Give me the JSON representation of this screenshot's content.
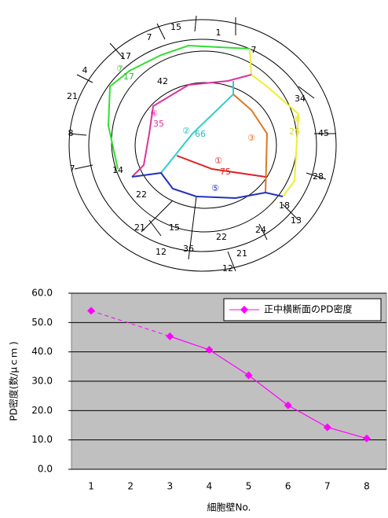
{
  "diagram": {
    "labels": [
      "15",
      "1",
      "7",
      "17",
      "7",
      "4",
      "21",
      "42",
      "34",
      "8",
      "45",
      "7",
      "14",
      "28",
      "22",
      "18",
      "13",
      "21",
      "15",
      "24",
      "22",
      "36",
      "21",
      "12",
      "12",
      "⑦",
      "17",
      "④",
      "35",
      "②",
      "66",
      "③",
      "⑥",
      "26",
      "①",
      "75",
      "⑤"
    ]
  },
  "chart_data": {
    "type": "line",
    "categories": [
      "1",
      "2",
      "3",
      "4",
      "5",
      "6",
      "7",
      "8"
    ],
    "series": [
      {
        "name": "正中横断面のPD密度",
        "color": "#ff00ff",
        "values": [
          54.0,
          null,
          45.3,
          40.7,
          32.0,
          21.8,
          14.3,
          10.5
        ]
      }
    ],
    "ylim": [
      0,
      60
    ],
    "yticks": [
      {
        "value": 0,
        "label": "0.0"
      },
      {
        "value": 10,
        "label": "10.0"
      },
      {
        "value": 20,
        "label": "20.0"
      },
      {
        "value": 30,
        "label": "30.0"
      },
      {
        "value": 40,
        "label": "40.0"
      },
      {
        "value": 50,
        "label": "50.0"
      },
      {
        "value": 60,
        "label": "60.0"
      }
    ],
    "y_label": "PD密度(数/μｃｍ )",
    "x_label": "細胞壁No.",
    "grid": true
  }
}
